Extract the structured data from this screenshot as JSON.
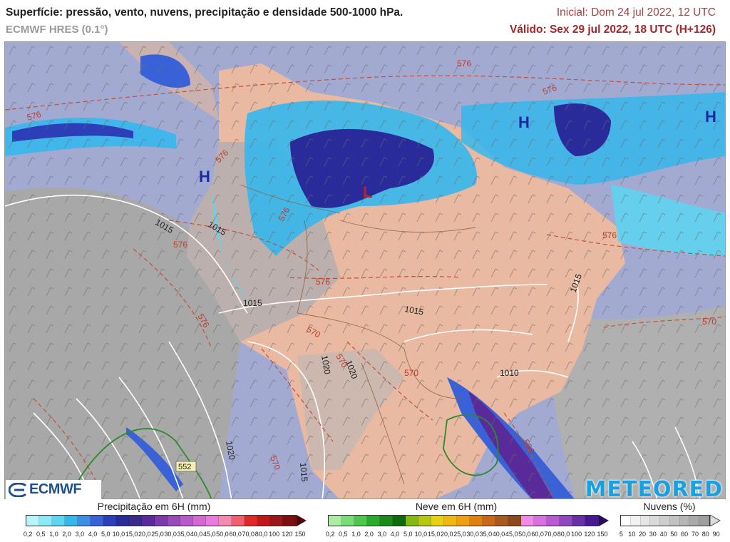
{
  "header": {
    "title": "Superfície: pressão, vento, nuvens, precipitação e densidade 500-1000 hPa.",
    "model": "ECMWF HRES (0.1°)",
    "init": "Inicial: Dom 24 jul 2022, 12 UTC",
    "valid": "Válido: Sex 29 jul 2022, 18 UTC (H+126)"
  },
  "map": {
    "pressure_centers": [
      {
        "label": "H",
        "color": "#1a2a9e"
      },
      {
        "label": "H",
        "color": "#1a2a9e"
      },
      {
        "label": "H",
        "color": "#1a2a9e"
      },
      {
        "label": "L",
        "color": "#c02020"
      }
    ],
    "isobar_labels": [
      "1015",
      "1015",
      "1015",
      "1015",
      "1015",
      "1020",
      "1020",
      "1020",
      "1015",
      "1010"
    ],
    "thickness_labels": [
      "576",
      "576",
      "576",
      "576",
      "576",
      "576",
      "576",
      "576",
      "576",
      "570",
      "570",
      "570",
      "570",
      "564",
      "552"
    ],
    "logos": {
      "left": "ECMWF",
      "right": "METEORED"
    }
  },
  "legends": {
    "precip": {
      "title": "Precipitação em 6H (mm)",
      "ticks": [
        "0,2",
        "0,5",
        "1,0",
        "2,0",
        "3,0",
        "4,0",
        "5,0",
        "10,0",
        "15,0",
        "20,0",
        "25,0",
        "30,0",
        "35,0",
        "40,0",
        "45,0",
        "50,0",
        "60,0",
        "70,0",
        "80,0",
        "100",
        "120",
        "150"
      ],
      "colors": [
        "#b8f4fb",
        "#8ce9f8",
        "#5cd6f3",
        "#35b7ec",
        "#3f8ee6",
        "#3a62d8",
        "#2c3fb8",
        "#2a2b9a",
        "#3a2a8a",
        "#5a2a9a",
        "#7a3aaa",
        "#9a4ab8",
        "#b85ac8",
        "#d26ad2",
        "#ea7ae0",
        "#f58ab0",
        "#f26070",
        "#e02828",
        "#c01818",
        "#9a1818",
        "#7a1010"
      ]
    },
    "snow": {
      "title": "Neve em 6H (mm)",
      "ticks": [
        "0,2",
        "0,5",
        "1,0",
        "2,0",
        "3,0",
        "4,0",
        "5,0",
        "10,0",
        "15,0",
        "20,0",
        "25,0",
        "30,0",
        "35,0",
        "40,0",
        "45,0",
        "50,0",
        "60,0",
        "70,0",
        "80,0",
        "100",
        "120",
        "150"
      ],
      "colors": [
        "#a8f0a0",
        "#78dc78",
        "#4cc84c",
        "#2caa2c",
        "#1a8a1a",
        "#0e6a0e",
        "#84b812",
        "#b8c812",
        "#e8d012",
        "#f2b812",
        "#eea012",
        "#e08010",
        "#c86a18",
        "#a85a20",
        "#8a4a1e",
        "#f08ae8",
        "#d870e0",
        "#b85ad0",
        "#9048c0",
        "#6a30a8",
        "#481890"
      ]
    },
    "clouds": {
      "title": "Nuvens (%)",
      "ticks": [
        "5",
        "10",
        "20",
        "30",
        "40",
        "50",
        "60",
        "70",
        "80",
        "90"
      ],
      "colors": [
        "#ffffff",
        "#f2f2f2",
        "#e6e6e6",
        "#dadada",
        "#cecece",
        "#c2c2c2",
        "#b6b6b6",
        "#aaaaaa",
        "#9e9e9e"
      ]
    }
  }
}
